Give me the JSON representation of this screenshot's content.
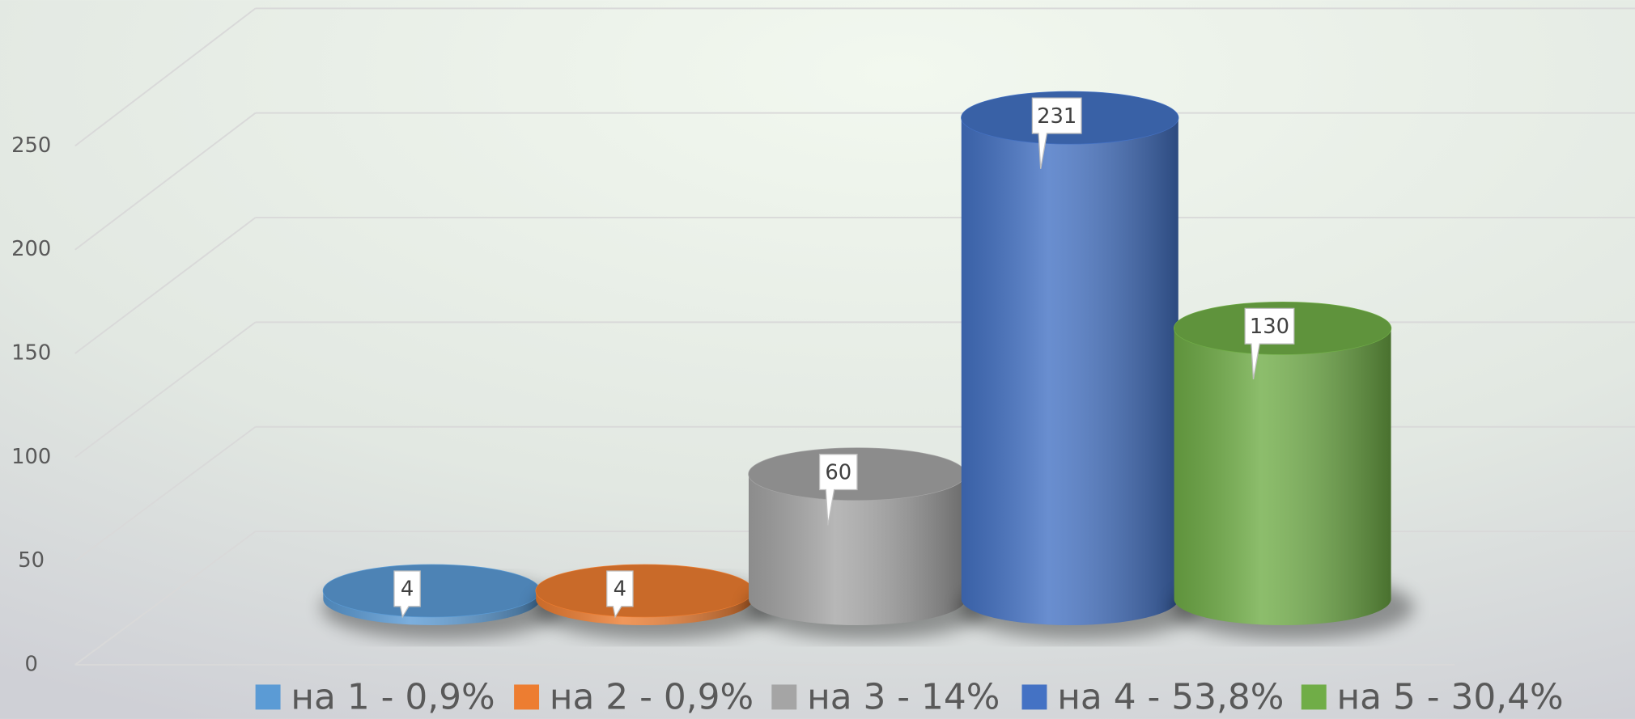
{
  "chart_data": {
    "type": "cylinder",
    "series": [
      {
        "name": "на 1 - 0,9%",
        "color": "#5b9bd5",
        "values": [
          4
        ]
      },
      {
        "name": "на 2 - 0,9%",
        "color": "#ed7d31",
        "values": [
          4
        ]
      },
      {
        "name": "на 3 - 14%",
        "color": "#a5a5a5",
        "values": [
          60
        ]
      },
      {
        "name": "на 4 - 53,8%",
        "color": "#4472c4",
        "values": [
          231
        ]
      },
      {
        "name": "на 5 - 30,4%",
        "color": "#70ad47",
        "values": [
          130
        ]
      }
    ],
    "ylim": [
      0,
      250
    ],
    "yticks": [
      0,
      50,
      100,
      150,
      200,
      250
    ],
    "grid": true,
    "legend": "bottom"
  }
}
